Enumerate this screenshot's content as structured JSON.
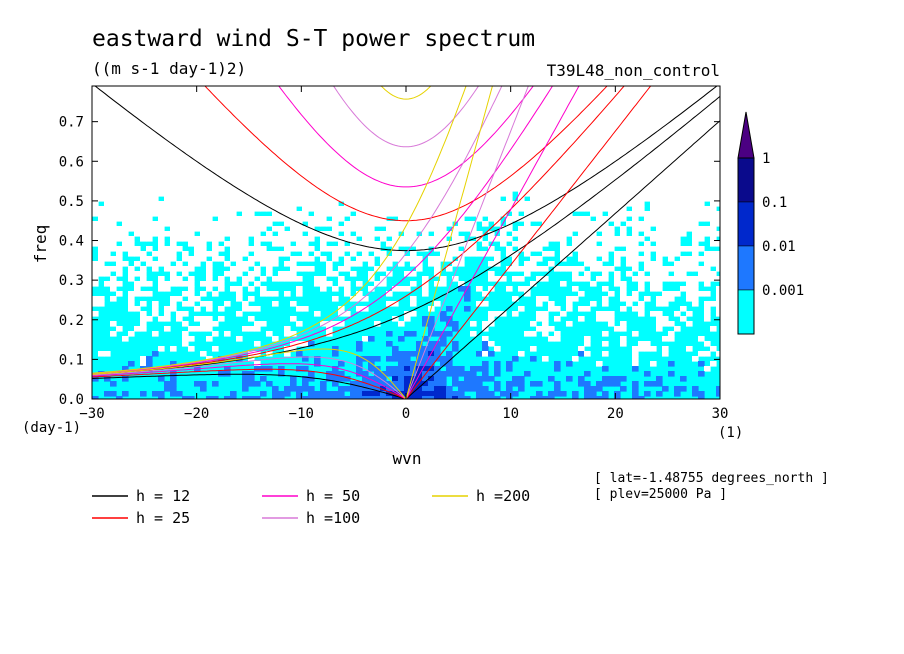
{
  "chart_data": {
    "type": "heatmap",
    "title": "eastward wind S-T power spectrum",
    "subtitle": "((m s-1 day-1)2)",
    "run_label": "T39L48_non_control",
    "xlabel": "wvn",
    "ylabel": "freq",
    "x_unit": "(1)",
    "y_unit": "(day-1)",
    "xlim": [
      -30,
      30
    ],
    "ylim": [
      0,
      0.79
    ],
    "xticks": [
      -30,
      -20,
      -10,
      0,
      10,
      20,
      30
    ],
    "yticks": [
      0.0,
      0.1,
      0.2,
      0.3,
      0.4,
      0.5,
      0.6,
      0.7
    ],
    "color_levels": [
      0.001,
      0.01,
      0.1,
      1
    ],
    "color_scale_labels": [
      "0.001",
      "0.01",
      "0.1",
      "1"
    ],
    "colors": {
      "below": "#ffffff",
      "l1": "#00ffff",
      "l2": "#1e78ff",
      "l3": "#0028cc",
      "l4": "#0a0a8c",
      "above": "#4b0082"
    },
    "dispersion_curves": [
      {
        "label": "h = 12",
        "h": 12,
        "color": "#000000"
      },
      {
        "label": "h = 25",
        "h": 25,
        "color": "#ff0000"
      },
      {
        "label": "h = 50",
        "h": 50,
        "color": "#ff00cc"
      },
      {
        "label": "h =100",
        "h": 100,
        "color": "#d87ad8"
      },
      {
        "label": "h =200",
        "h": 200,
        "color": "#e6d200"
      }
    ],
    "info": [
      "[ lat=-1.48755 degrees_north ]",
      "[ plev=25000 Pa ]"
    ]
  }
}
